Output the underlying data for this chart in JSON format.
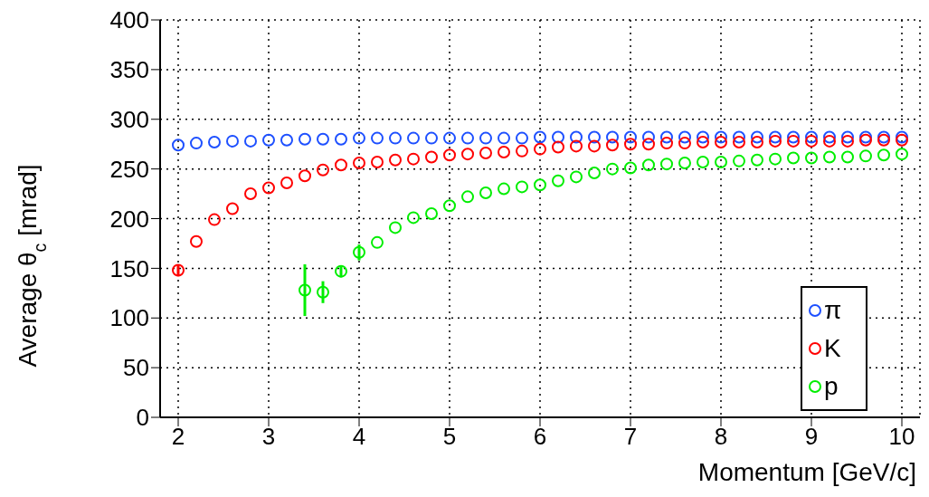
{
  "chart_data": {
    "type": "scatter",
    "xlabel": "Momentum [GeV/c]",
    "ylabel": "Average θ$_{c}$ [mrad]",
    "xlim": [
      1.8,
      10.2
    ],
    "xticks": [
      2,
      3,
      4,
      5,
      6,
      7,
      8,
      9,
      10
    ],
    "ylim": [
      0,
      400
    ],
    "yticks": [
      0,
      50,
      100,
      150,
      200,
      250,
      300,
      350,
      400
    ],
    "grid": true,
    "legend": "bottom right",
    "marker": "circle",
    "series": [
      {
        "name": "π",
        "color": "#1e50ff",
        "x": [
          2,
          2.2,
          2.4,
          2.6,
          2.8,
          3,
          3.2,
          3.4,
          3.6,
          3.8,
          4,
          4.2,
          4.4,
          4.6,
          4.8,
          5,
          5.2,
          5.4,
          5.6,
          5.8,
          6,
          6.2,
          6.4,
          6.6,
          6.8,
          7,
          7.2,
          7.4,
          7.6,
          7.8,
          8,
          8.2,
          8.4,
          8.6,
          8.8,
          9,
          9.2,
          9.4,
          9.6,
          9.8,
          10
        ],
        "values": [
          274,
          276,
          277,
          278,
          278,
          279,
          279,
          280,
          280,
          280,
          281,
          281,
          281,
          281,
          281,
          281,
          281,
          281,
          281,
          281,
          282,
          282,
          282,
          282,
          282,
          282,
          282,
          282,
          282,
          282,
          282,
          282,
          282,
          282,
          282,
          282,
          282,
          282,
          282,
          282,
          282
        ]
      },
      {
        "name": "K",
        "color": "#ff0000",
        "x": [
          2,
          2.2,
          2.4,
          2.6,
          2.8,
          3,
          3.2,
          3.4,
          3.6,
          3.8,
          4,
          4.2,
          4.4,
          4.6,
          4.8,
          5,
          5.2,
          5.4,
          5.6,
          5.8,
          6,
          6.2,
          6.4,
          6.6,
          6.8,
          7,
          7.2,
          7.4,
          7.6,
          7.8,
          8,
          8.2,
          8.4,
          8.6,
          8.8,
          9,
          9.2,
          9.4,
          9.6,
          9.8,
          10
        ],
        "values": [
          148,
          177,
          199,
          210,
          225,
          231,
          236,
          243,
          249,
          254,
          256,
          257,
          259,
          260,
          262,
          264,
          265,
          266,
          267,
          268,
          270,
          272,
          273,
          273,
          274,
          275,
          275,
          276,
          276,
          277,
          277,
          277,
          277,
          278,
          278,
          278,
          278,
          278,
          279,
          279,
          279
        ],
        "errors": [
          6,
          null,
          null,
          null,
          null,
          null,
          null,
          null,
          null,
          null,
          null,
          null,
          null,
          null,
          null,
          null,
          null,
          null,
          null,
          null,
          null,
          null,
          null,
          null,
          null,
          null,
          null,
          null,
          null,
          null,
          null,
          null,
          null,
          null,
          null,
          null,
          null,
          null,
          null,
          null,
          null
        ]
      },
      {
        "name": "p",
        "color": "#00ee00",
        "x": [
          3.4,
          3.6,
          3.8,
          4,
          4.2,
          4.4,
          4.6,
          4.8,
          5,
          5.2,
          5.4,
          5.6,
          5.8,
          6,
          6.2,
          6.4,
          6.6,
          6.8,
          7,
          7.2,
          7.4,
          7.6,
          7.8,
          8,
          8.2,
          8.4,
          8.6,
          8.8,
          9,
          9.2,
          9.4,
          9.6,
          9.8,
          10
        ],
        "values": [
          128,
          126,
          147,
          166,
          176,
          191,
          201,
          205,
          213,
          222,
          226,
          230,
          232,
          234,
          238,
          242,
          246,
          250,
          251,
          254,
          255,
          256,
          257,
          257,
          258,
          259,
          260,
          261,
          261,
          262,
          262,
          263,
          264,
          265
        ],
        "errors": [
          26,
          11,
          6,
          8,
          null,
          null,
          null,
          null,
          null,
          null,
          null,
          null,
          null,
          null,
          null,
          null,
          null,
          null,
          null,
          null,
          null,
          null,
          null,
          null,
          null,
          null,
          null,
          null,
          null,
          null,
          null,
          null,
          null,
          null
        ]
      }
    ]
  }
}
